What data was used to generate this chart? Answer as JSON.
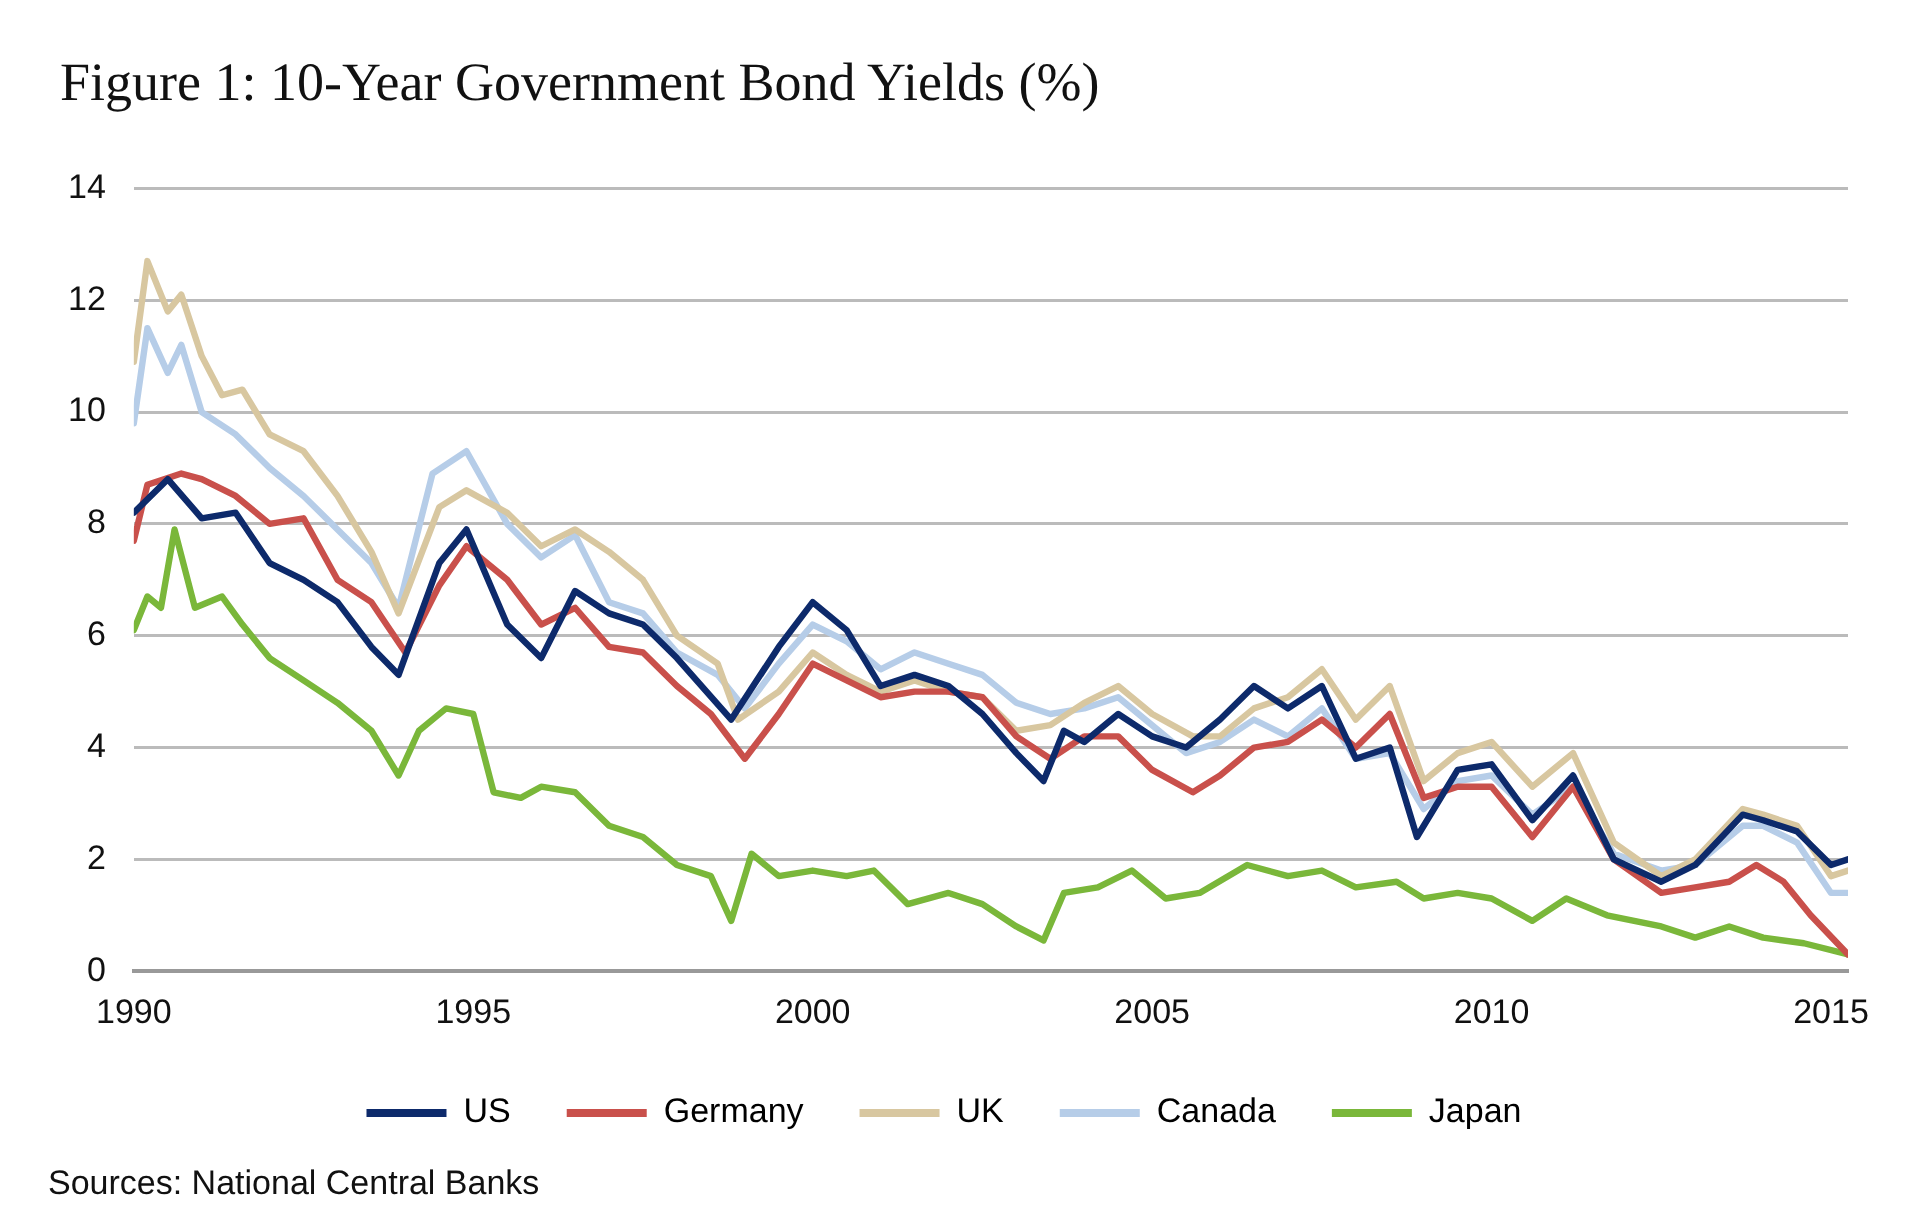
{
  "chart_data": {
    "type": "line",
    "title": "Figure 1: 10-Year Government Bond Yields (%)",
    "annotations": [
      "Sources: National Central Banks"
    ],
    "xlim": [
      1990,
      2015.25
    ],
    "xticks": [
      1990,
      1995,
      2000,
      2005,
      2010,
      2015
    ],
    "ylim": [
      0,
      14
    ],
    "yticks": [
      0,
      2,
      4,
      6,
      8,
      10,
      12,
      14
    ],
    "grid": "y",
    "legend": "bottom",
    "marker": "none",
    "line_style": "solid",
    "series": [
      {
        "name": "US",
        "color": "#0d2a6b",
        "x": [
          1990,
          1990.5,
          1991,
          1991.5,
          1992,
          1992.5,
          1993,
          1993.5,
          1993.9,
          1994.5,
          1994.9,
          1995.5,
          1996,
          1996.5,
          1997,
          1997.5,
          1998,
          1998.8,
          1999.5,
          2000,
          2000.5,
          2001,
          2001.5,
          2002,
          2002.5,
          2003,
          2003.4,
          2003.7,
          2004,
          2004.5,
          2005,
          2005.5,
          2006,
          2006.5,
          2007,
          2007.5,
          2008,
          2008.5,
          2008.9,
          2009.5,
          2010,
          2010.6,
          2011.2,
          2011.8,
          2012.5,
          2013,
          2013.7,
          2014,
          2014.5,
          2015,
          2015.25
        ],
        "values": [
          8.2,
          8.8,
          8.1,
          8.2,
          7.3,
          7.0,
          6.6,
          5.8,
          5.3,
          7.3,
          7.9,
          6.2,
          5.6,
          6.8,
          6.4,
          6.2,
          5.6,
          4.5,
          5.8,
          6.6,
          6.1,
          5.1,
          5.3,
          5.1,
          4.6,
          3.9,
          3.4,
          4.3,
          4.1,
          4.6,
          4.2,
          4.0,
          4.5,
          5.1,
          4.7,
          5.1,
          3.8,
          4.0,
          2.4,
          3.6,
          3.7,
          2.7,
          3.5,
          2.0,
          1.6,
          1.9,
          2.8,
          2.7,
          2.5,
          1.9,
          2.0
        ]
      },
      {
        "name": "Germany",
        "color": "#c9504b",
        "x": [
          1990,
          1990.2,
          1990.7,
          1991,
          1991.5,
          1992,
          1992.5,
          1993,
          1993.5,
          1994,
          1994.5,
          1994.9,
          1995.5,
          1996,
          1996.5,
          1997,
          1997.5,
          1998,
          1998.5,
          1999,
          1999.5,
          2000,
          2000.5,
          2001,
          2001.5,
          2002,
          2002.5,
          2003,
          2003.5,
          2004,
          2004.5,
          2005,
          2005.6,
          2006,
          2006.5,
          2007,
          2007.5,
          2008,
          2008.5,
          2009,
          2009.5,
          2010,
          2010.6,
          2011.2,
          2011.8,
          2012.5,
          2013,
          2013.5,
          2013.9,
          2014.3,
          2014.7,
          2015.25
        ],
        "values": [
          7.7,
          8.7,
          8.9,
          8.8,
          8.5,
          8.0,
          8.1,
          7.0,
          6.6,
          5.7,
          6.9,
          7.6,
          7.0,
          6.2,
          6.5,
          5.8,
          5.7,
          5.1,
          4.6,
          3.8,
          4.6,
          5.5,
          5.2,
          4.9,
          5.0,
          5.0,
          4.9,
          4.2,
          3.8,
          4.2,
          4.2,
          3.6,
          3.2,
          3.5,
          4.0,
          4.1,
          4.5,
          4.0,
          4.6,
          3.1,
          3.3,
          3.3,
          2.4,
          3.3,
          2.0,
          1.4,
          1.5,
          1.6,
          1.9,
          1.6,
          1.0,
          0.3
        ]
      },
      {
        "name": "UK",
        "color": "#d8c7a0",
        "x": [
          1990,
          1990.2,
          1990.5,
          1990.7,
          1991,
          1991.3,
          1991.6,
          1992,
          1992.5,
          1993,
          1993.5,
          1993.9,
          1994.5,
          1994.9,
          1995.5,
          1996,
          1996.5,
          1997,
          1997.5,
          1998,
          1998.6,
          1998.9,
          1999.5,
          2000,
          2000.5,
          2001,
          2001.5,
          2002,
          2002.5,
          2003,
          2003.5,
          2004,
          2004.5,
          2005,
          2005.6,
          2006,
          2006.5,
          2007,
          2007.5,
          2008,
          2008.5,
          2009,
          2009.5,
          2010,
          2010.6,
          2011.2,
          2011.8,
          2012.5,
          2013,
          2013.7,
          2014,
          2014.5,
          2015,
          2015.25
        ],
        "values": [
          10.9,
          12.7,
          11.8,
          12.1,
          11.0,
          10.3,
          10.4,
          9.6,
          9.3,
          8.5,
          7.5,
          6.4,
          8.3,
          8.6,
          8.2,
          7.6,
          7.9,
          7.5,
          7.0,
          6.0,
          5.5,
          4.5,
          5.0,
          5.7,
          5.3,
          5.0,
          5.2,
          5.0,
          4.9,
          4.3,
          4.4,
          4.8,
          5.1,
          4.6,
          4.2,
          4.2,
          4.7,
          4.9,
          5.4,
          4.5,
          5.1,
          3.4,
          3.9,
          4.1,
          3.3,
          3.9,
          2.3,
          1.7,
          2.0,
          2.9,
          2.8,
          2.6,
          1.7,
          1.8
        ]
      },
      {
        "name": "Canada",
        "color": "#b6cde8",
        "x": [
          1990,
          1990.2,
          1990.5,
          1990.7,
          1991,
          1991.5,
          1992,
          1992.5,
          1993,
          1993.5,
          1993.9,
          1994.4,
          1994.9,
          1995.5,
          1996,
          1996.5,
          1997,
          1997.5,
          1998,
          1998.6,
          1999,
          1999.5,
          2000,
          2000.5,
          2001,
          2001.5,
          2002,
          2002.5,
          2003,
          2003.5,
          2004,
          2004.5,
          2005,
          2005.5,
          2006,
          2006.5,
          2007,
          2007.5,
          2008,
          2008.5,
          2009,
          2009.5,
          2010,
          2010.6,
          2011.2,
          2011.8,
          2012.5,
          2013,
          2013.7,
          2014,
          2014.5,
          2015,
          2015.25
        ],
        "values": [
          9.8,
          11.5,
          10.7,
          11.2,
          10.0,
          9.6,
          9.0,
          8.5,
          7.9,
          7.3,
          6.5,
          8.9,
          9.3,
          8.0,
          7.4,
          7.8,
          6.6,
          6.4,
          5.7,
          5.3,
          4.7,
          5.5,
          6.2,
          5.9,
          5.4,
          5.7,
          5.5,
          5.3,
          4.8,
          4.6,
          4.7,
          4.9,
          4.4,
          3.9,
          4.1,
          4.5,
          4.2,
          4.7,
          3.8,
          3.9,
          2.9,
          3.4,
          3.5,
          2.8,
          3.3,
          2.1,
          1.8,
          1.9,
          2.6,
          2.6,
          2.3,
          1.4,
          1.4
        ]
      },
      {
        "name": "Japan",
        "color": "#7ab73a",
        "x": [
          1990,
          1990.2,
          1990.4,
          1990.6,
          1990.9,
          1991.3,
          1991.6,
          1992,
          1992.5,
          1993,
          1993.5,
          1993.9,
          1994.2,
          1994.6,
          1995,
          1995.3,
          1995.7,
          1996,
          1996.5,
          1997,
          1997.5,
          1998,
          1998.5,
          1998.8,
          1999.1,
          1999.5,
          2000,
          2000.5,
          2000.9,
          2001.4,
          2002,
          2002.5,
          2003,
          2003.4,
          2003.7,
          2004.2,
          2004.7,
          2005.2,
          2005.7,
          2006.4,
          2007,
          2007.5,
          2008,
          2008.6,
          2009,
          2009.5,
          2010,
          2010.6,
          2011.1,
          2011.7,
          2012.5,
          2013,
          2013.5,
          2014,
          2014.6,
          2015.25
        ],
        "values": [
          6.1,
          6.7,
          6.5,
          7.9,
          6.5,
          6.7,
          6.2,
          5.6,
          5.2,
          4.8,
          4.3,
          3.5,
          4.3,
          4.7,
          4.6,
          3.2,
          3.1,
          3.3,
          3.2,
          2.6,
          2.4,
          1.9,
          1.7,
          0.9,
          2.1,
          1.7,
          1.8,
          1.7,
          1.8,
          1.2,
          1.4,
          1.2,
          0.8,
          0.55,
          1.4,
          1.5,
          1.8,
          1.3,
          1.4,
          1.9,
          1.7,
          1.8,
          1.5,
          1.6,
          1.3,
          1.4,
          1.3,
          0.9,
          1.3,
          1.0,
          0.8,
          0.6,
          0.8,
          0.6,
          0.5,
          0.3
        ]
      }
    ]
  }
}
